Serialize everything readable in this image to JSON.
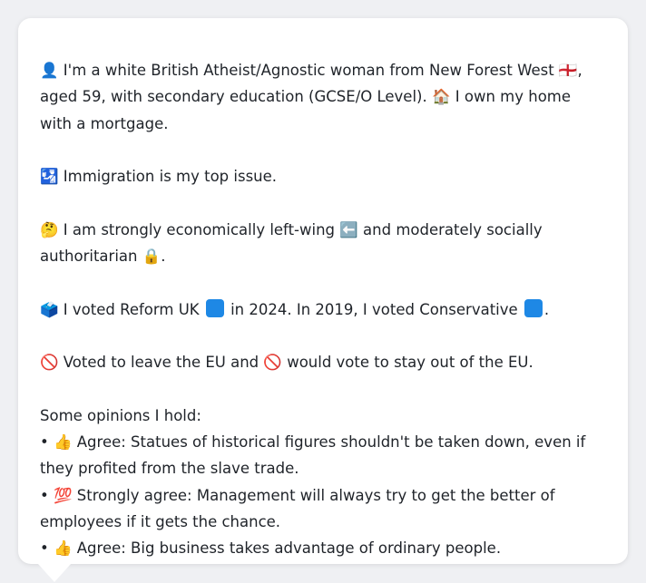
{
  "profile": {
    "intro_1": "👤 I'm a white British Atheist/Agnostic woman from New Forest West 🏴󠁧󠁢󠁥󠁮󠁧󠁿, aged 59, with secondary education (GCSE/O Level). 🏠 I own my home with a mortgage.",
    "issue": "🛂 Immigration is my top issue.",
    "ideology": "🤔 I am strongly economically left-wing ⬅️ and moderately socially authoritarian 🔒.",
    "vote_prefix": "🗳️ I voted Reform UK",
    "vote_middle": "in 2024. In 2019, I voted Conservative",
    "vote_suffix": ".",
    "reform_color": "#1e88e5",
    "conservative_color": "#1e88e5",
    "eu": "🚫 Voted to leave the EU and 🚫 would vote to stay out of the EU.",
    "opinions_heading": "Some opinions I hold:",
    "opinions": [
      "• 👍 Agree: Statues of historical figures shouldn't be taken down, even if they profited from the slave trade.",
      "• 💯 Strongly agree: Management will always try to get the better of employees if it gets the chance.",
      "• 👍 Agree: Big business takes advantage of ordinary people."
    ]
  }
}
